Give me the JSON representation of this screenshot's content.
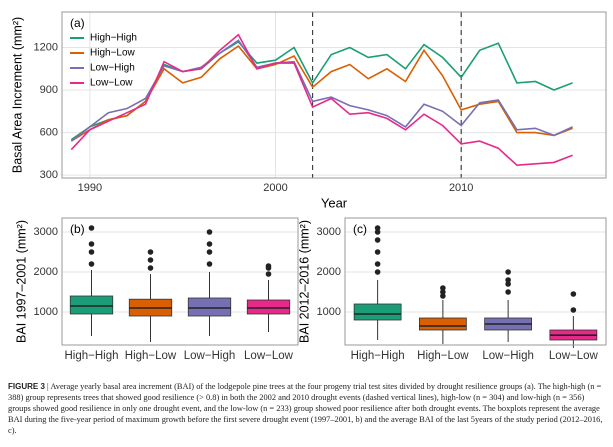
{
  "chart_data": [
    {
      "type": "line",
      "title": "(a)",
      "x_label": "Year",
      "y_label": "Basal Area Increment (mm²)",
      "x": [
        1989,
        1990,
        1991,
        1992,
        1993,
        1994,
        1995,
        1996,
        1997,
        1998,
        1999,
        2000,
        2001,
        2002,
        2003,
        2004,
        2005,
        2006,
        2007,
        2008,
        2009,
        2010,
        2011,
        2012,
        2013,
        2014,
        2015,
        2016
      ],
      "series": [
        {
          "name": "High−High",
          "color": "#1b9e77",
          "values": [
            550,
            640,
            690,
            720,
            820,
            1080,
            1030,
            1050,
            1160,
            1240,
            1090,
            1110,
            1200,
            950,
            1150,
            1200,
            1130,
            1150,
            1050,
            1220,
            1130,
            990,
            1180,
            1230,
            950,
            960,
            900,
            950
          ]
        },
        {
          "name": "High−Low",
          "color": "#d95f02",
          "values": [
            540,
            620,
            690,
            720,
            820,
            1050,
            950,
            990,
            1120,
            1210,
            1050,
            1080,
            1140,
            920,
            1030,
            1080,
            980,
            1050,
            960,
            1180,
            1000,
            760,
            800,
            820,
            600,
            600,
            580,
            630
          ]
        },
        {
          "name": "Low−High",
          "color": "#7570b3",
          "values": [
            540,
            640,
            740,
            770,
            840,
            1070,
            1030,
            1060,
            1160,
            1250,
            1060,
            1090,
            1100,
            820,
            850,
            790,
            760,
            720,
            640,
            800,
            750,
            650,
            810,
            830,
            620,
            630,
            580,
            640
          ]
        },
        {
          "name": "Low−Low",
          "color": "#e7298a",
          "values": [
            480,
            620,
            680,
            740,
            800,
            1100,
            1030,
            1050,
            1180,
            1290,
            1050,
            1090,
            1090,
            780,
            840,
            730,
            740,
            700,
            620,
            730,
            650,
            520,
            540,
            490,
            370,
            380,
            390,
            440
          ]
        }
      ],
      "vlines": [
        2002,
        2010
      ],
      "xlim": [
        1988.5,
        2017.8
      ],
      "xticks": [
        1990,
        2000,
        2010
      ],
      "ylim": [
        280,
        1450
      ],
      "yticks": [
        300,
        600,
        900,
        1200
      ],
      "grid": true,
      "legend": "top-left"
    },
    {
      "type": "box",
      "title": "(b)",
      "y_label": "BAI 1997–2001 (mm²)",
      "categories": [
        "High−High",
        "High−Low",
        "Low−High",
        "Low−Low"
      ],
      "colors": [
        "#1b9e77",
        "#d95f02",
        "#7570b3",
        "#e7298a"
      ],
      "boxes": [
        {
          "whisker_low": 400,
          "q1": 950,
          "median": 1150,
          "q3": 1400,
          "whisker_high": 2050,
          "outliers": [
            2200,
            2500,
            2700,
            3100
          ]
        },
        {
          "whisker_low": 250,
          "q1": 900,
          "median": 1100,
          "q3": 1320,
          "whisker_high": 1950,
          "outliers": [
            2100,
            2300,
            2500
          ]
        },
        {
          "whisker_low": 400,
          "q1": 900,
          "median": 1100,
          "q3": 1350,
          "whisker_high": 2000,
          "outliers": [
            2200,
            2500,
            2700,
            3000
          ]
        },
        {
          "whisker_low": 500,
          "q1": 950,
          "median": 1100,
          "q3": 1300,
          "whisker_high": 1800,
          "outliers": [
            1950,
            2100,
            2150
          ]
        }
      ],
      "ylim": [
        175,
        3350
      ],
      "yticks": [
        1000,
        2000,
        3000
      ],
      "grid": true
    },
    {
      "type": "box",
      "title": "(c)",
      "y_label": "BAI 2012–2016 (mm²)",
      "categories": [
        "High−High",
        "High−Low",
        "Low−High",
        "Low−Low"
      ],
      "colors": [
        "#1b9e77",
        "#d95f02",
        "#7570b3",
        "#e7298a"
      ],
      "boxes": [
        {
          "whisker_low": 300,
          "q1": 800,
          "median": 950,
          "q3": 1200,
          "whisker_high": 1800,
          "outliers": [
            2000,
            2200,
            2500,
            2800,
            3000,
            3100
          ]
        },
        {
          "whisker_low": 200,
          "q1": 550,
          "median": 650,
          "q3": 850,
          "whisker_high": 1300,
          "outliers": [
            1400,
            1500,
            1600
          ]
        },
        {
          "whisker_low": 250,
          "q1": 550,
          "median": 700,
          "q3": 850,
          "whisker_high": 1300,
          "outliers": [
            1500,
            1700,
            1800,
            2000
          ]
        },
        {
          "whisker_low": 100,
          "q1": 300,
          "median": 420,
          "q3": 550,
          "whisker_high": 900,
          "outliers": [
            1050,
            1450
          ]
        }
      ],
      "ylim": [
        175,
        3350
      ],
      "yticks": [
        1000,
        2000,
        3000
      ],
      "grid": true
    }
  ],
  "caption": {
    "label": "FIGURE 3",
    "separator": "|",
    "text": "Average yearly basal area increment (BAI) of the lodgepole pine trees at the four progeny trial test sites divided by drought resilience groups (a). The high-high (n = 388) group represents trees that showed good resilience (> 0.8) in both the 2002 and 2010 drought events (dashed vertical lines), high-low (n = 304) and low-high (n = 356) groups showed good resilience in only one drought event, and the low-low (n = 233) group showed poor resilience after both drought events. The boxplots represent the average BAI during the five-year period of maximum growth before the first severe drought event (1997–2001, b) and the average BAI of the last 5years of the study period (2012–2016, c)."
  }
}
